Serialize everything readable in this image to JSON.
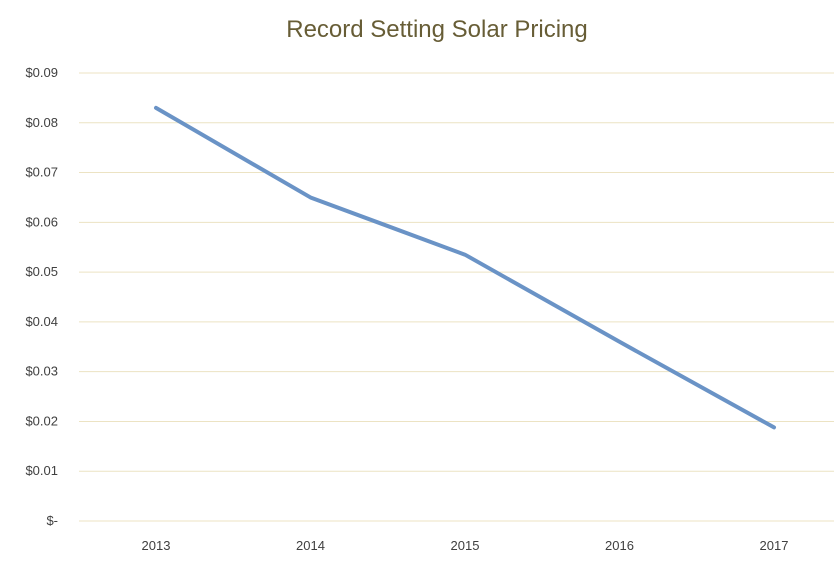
{
  "chart_data": {
    "type": "line",
    "title": "Record Setting Solar Pricing",
    "xlabel": "",
    "ylabel": "",
    "categories": [
      "2013",
      "2014",
      "2015",
      "2016",
      "2017"
    ],
    "series": [
      {
        "values": [
          0.083,
          0.065,
          0.0535,
          0.036,
          0.0188
        ]
      }
    ],
    "ylim": [
      0,
      0.09
    ],
    "yticks": [
      0,
      0.01,
      0.02,
      0.03,
      0.04,
      0.05,
      0.06,
      0.07,
      0.08,
      0.09
    ],
    "ytick_labels": [
      "$-",
      "$0.01",
      "$0.02",
      "$0.03",
      "$0.04",
      "$0.05",
      "$0.06",
      "$0.07",
      "$0.08",
      "$0.09"
    ],
    "grid": true,
    "legend": "none",
    "colors": {
      "line": "#6a93c6",
      "grid": "#ece3c3",
      "title": "#675d36",
      "ticks": "#404040"
    }
  }
}
